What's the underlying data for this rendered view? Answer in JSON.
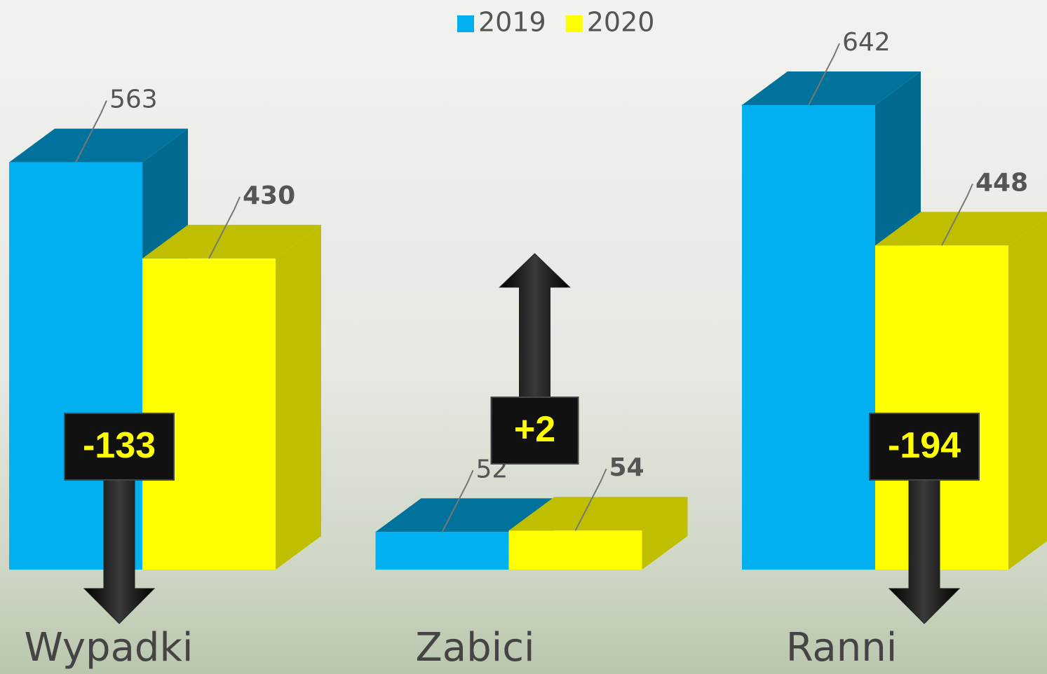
{
  "chart_data": {
    "type": "bar3d",
    "categories": [
      "Wypadki",
      "Zabici",
      "Ranni"
    ],
    "series": [
      {
        "name": "2019",
        "color": "#00b0f0",
        "values": [
          563,
          52,
          642
        ]
      },
      {
        "name": "2020",
        "color": "#ffff00",
        "values": [
          430,
          54,
          448
        ]
      }
    ],
    "difference": {
      "values": [
        -133,
        2,
        -194
      ],
      "value_labels": [
        "-133",
        "+2",
        "-194"
      ]
    },
    "legend": "top"
  }
}
